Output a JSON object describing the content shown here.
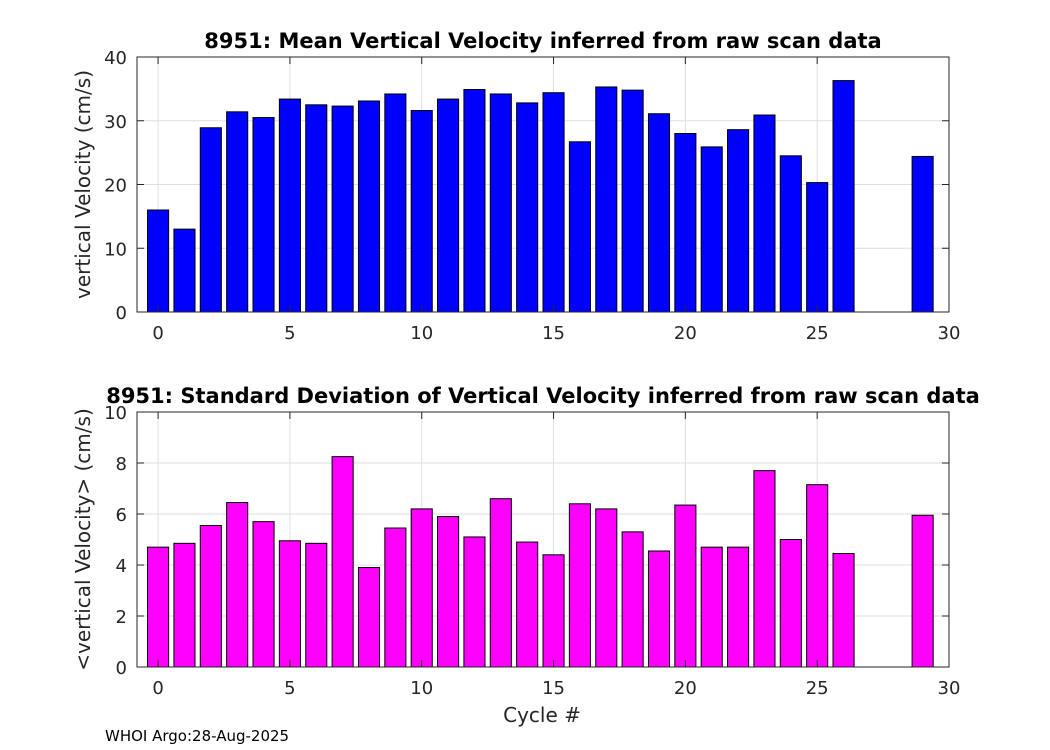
{
  "chart_data": [
    {
      "type": "bar",
      "title": "8951: Mean Vertical Velocity inferred from raw scan data",
      "xlabel": "",
      "ylabel": "vertical Velocity (cm/s)",
      "xlim": [
        -0.8,
        30
      ],
      "ylim": [
        0,
        40
      ],
      "xticks": [
        0,
        5,
        10,
        15,
        20,
        25,
        30
      ],
      "yticks": [
        0,
        10,
        20,
        30,
        40
      ],
      "grid": true,
      "bar_color": "#0000ff",
      "x": [
        0,
        1,
        2,
        3,
        4,
        5,
        6,
        7,
        8,
        9,
        10,
        11,
        12,
        13,
        14,
        15,
        16,
        17,
        18,
        19,
        20,
        21,
        22,
        23,
        24,
        25,
        26,
        29
      ],
      "values": [
        16.0,
        13.0,
        28.9,
        31.4,
        30.5,
        33.4,
        32.5,
        32.3,
        33.1,
        34.2,
        31.6,
        33.4,
        34.9,
        34.2,
        32.8,
        34.4,
        26.7,
        35.3,
        34.8,
        31.1,
        28.0,
        25.9,
        28.6,
        30.9,
        24.5,
        20.3,
        36.3,
        24.4
      ]
    },
    {
      "type": "bar",
      "title": "8951: Standard Deviation of Vertical Velocity inferred from raw scan data",
      "xlabel": "Cycle #",
      "ylabel": "<vertical Velocity> (cm/s)",
      "xlim": [
        -0.8,
        30
      ],
      "ylim": [
        0,
        10
      ],
      "xticks": [
        0,
        5,
        10,
        15,
        20,
        25,
        30
      ],
      "yticks": [
        0,
        2,
        4,
        6,
        8,
        10
      ],
      "grid": true,
      "bar_color": "#ff00ff",
      "x": [
        0,
        1,
        2,
        3,
        4,
        5,
        6,
        7,
        8,
        9,
        10,
        11,
        12,
        13,
        14,
        15,
        16,
        17,
        18,
        19,
        20,
        21,
        22,
        23,
        24,
        25,
        26,
        29
      ],
      "values": [
        4.7,
        4.85,
        5.55,
        6.45,
        5.7,
        4.95,
        4.85,
        8.25,
        3.9,
        5.45,
        6.2,
        5.9,
        5.1,
        6.6,
        4.9,
        4.4,
        6.4,
        6.2,
        5.3,
        4.55,
        6.35,
        4.7,
        4.7,
        7.7,
        5.0,
        7.15,
        4.45,
        5.95
      ]
    }
  ],
  "footer": "WHOI Argo:28-Aug-2025"
}
